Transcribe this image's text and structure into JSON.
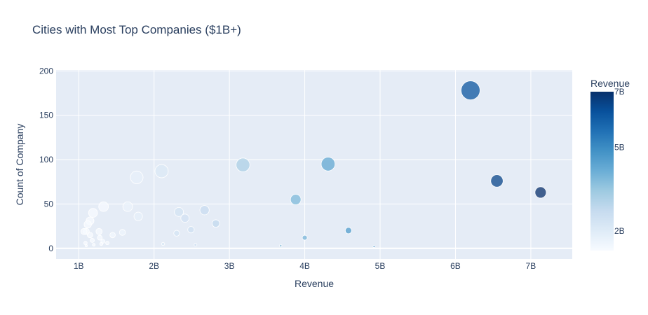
{
  "chart_data": {
    "type": "scatter",
    "title": "Cities with Most Top Companies ($1B+)",
    "xlabel": "Revenue",
    "ylabel": "Count of Company",
    "xlim": [
      0.7,
      7.55
    ],
    "ylim": [
      -12,
      201
    ],
    "x_unit_suffix": "B",
    "x_ticks": [
      {
        "value": 1,
        "label": "1B"
      },
      {
        "value": 2,
        "label": "2B"
      },
      {
        "value": 3,
        "label": "3B"
      },
      {
        "value": 4,
        "label": "4B"
      },
      {
        "value": 5,
        "label": "5B"
      },
      {
        "value": 6,
        "label": "6B"
      },
      {
        "value": 7,
        "label": "7B"
      }
    ],
    "y_ticks": [
      {
        "value": 0,
        "label": "0"
      },
      {
        "value": 50,
        "label": "50"
      },
      {
        "value": 100,
        "label": "100"
      },
      {
        "value": 150,
        "label": "150"
      },
      {
        "value": 200,
        "label": "200"
      }
    ],
    "grid": true,
    "size_encodes": "Count of Company",
    "color_encodes": "Revenue",
    "colorbar": {
      "title": "Revenue",
      "range": [
        1.3,
        7.0
      ],
      "ticks": [
        {
          "value": 2,
          "label": "2B"
        },
        {
          "value": 5,
          "label": "5B"
        },
        {
          "value": 7,
          "label": "7B"
        }
      ],
      "colorscale": [
        "#f7fbff",
        "#deebf7",
        "#c6dbef",
        "#9ecae1",
        "#6baed6",
        "#4292c6",
        "#2171b5",
        "#08519c",
        "#08306b"
      ]
    },
    "points": [
      {
        "x": 6.2,
        "y": 178
      },
      {
        "x": 6.55,
        "y": 76
      },
      {
        "x": 7.13,
        "y": 63
      },
      {
        "x": 4.31,
        "y": 95
      },
      {
        "x": 3.18,
        "y": 94
      },
      {
        "x": 3.88,
        "y": 55
      },
      {
        "x": 4.58,
        "y": 20
      },
      {
        "x": 4.0,
        "y": 12
      },
      {
        "x": 3.68,
        "y": 3
      },
      {
        "x": 4.92,
        "y": 2
      },
      {
        "x": 2.1,
        "y": 87
      },
      {
        "x": 1.77,
        "y": 80
      },
      {
        "x": 2.82,
        "y": 28
      },
      {
        "x": 2.67,
        "y": 43
      },
      {
        "x": 2.33,
        "y": 41
      },
      {
        "x": 2.41,
        "y": 34
      },
      {
        "x": 2.49,
        "y": 21
      },
      {
        "x": 2.3,
        "y": 17
      },
      {
        "x": 2.12,
        "y": 5
      },
      {
        "x": 2.55,
        "y": 4
      },
      {
        "x": 1.79,
        "y": 36
      },
      {
        "x": 1.65,
        "y": 47
      },
      {
        "x": 1.33,
        "y": 47
      },
      {
        "x": 1.19,
        "y": 40
      },
      {
        "x": 1.15,
        "y": 31
      },
      {
        "x": 1.12,
        "y": 27
      },
      {
        "x": 1.1,
        "y": 19
      },
      {
        "x": 1.07,
        "y": 19
      },
      {
        "x": 1.15,
        "y": 15
      },
      {
        "x": 1.27,
        "y": 19
      },
      {
        "x": 1.28,
        "y": 12
      },
      {
        "x": 1.45,
        "y": 15
      },
      {
        "x": 1.58,
        "y": 18
      },
      {
        "x": 1.32,
        "y": 8
      },
      {
        "x": 1.38,
        "y": 6
      },
      {
        "x": 1.3,
        "y": 5
      },
      {
        "x": 1.2,
        "y": 4
      },
      {
        "x": 1.09,
        "y": 6
      },
      {
        "x": 1.1,
        "y": 3
      },
      {
        "x": 1.18,
        "y": 9
      }
    ]
  }
}
